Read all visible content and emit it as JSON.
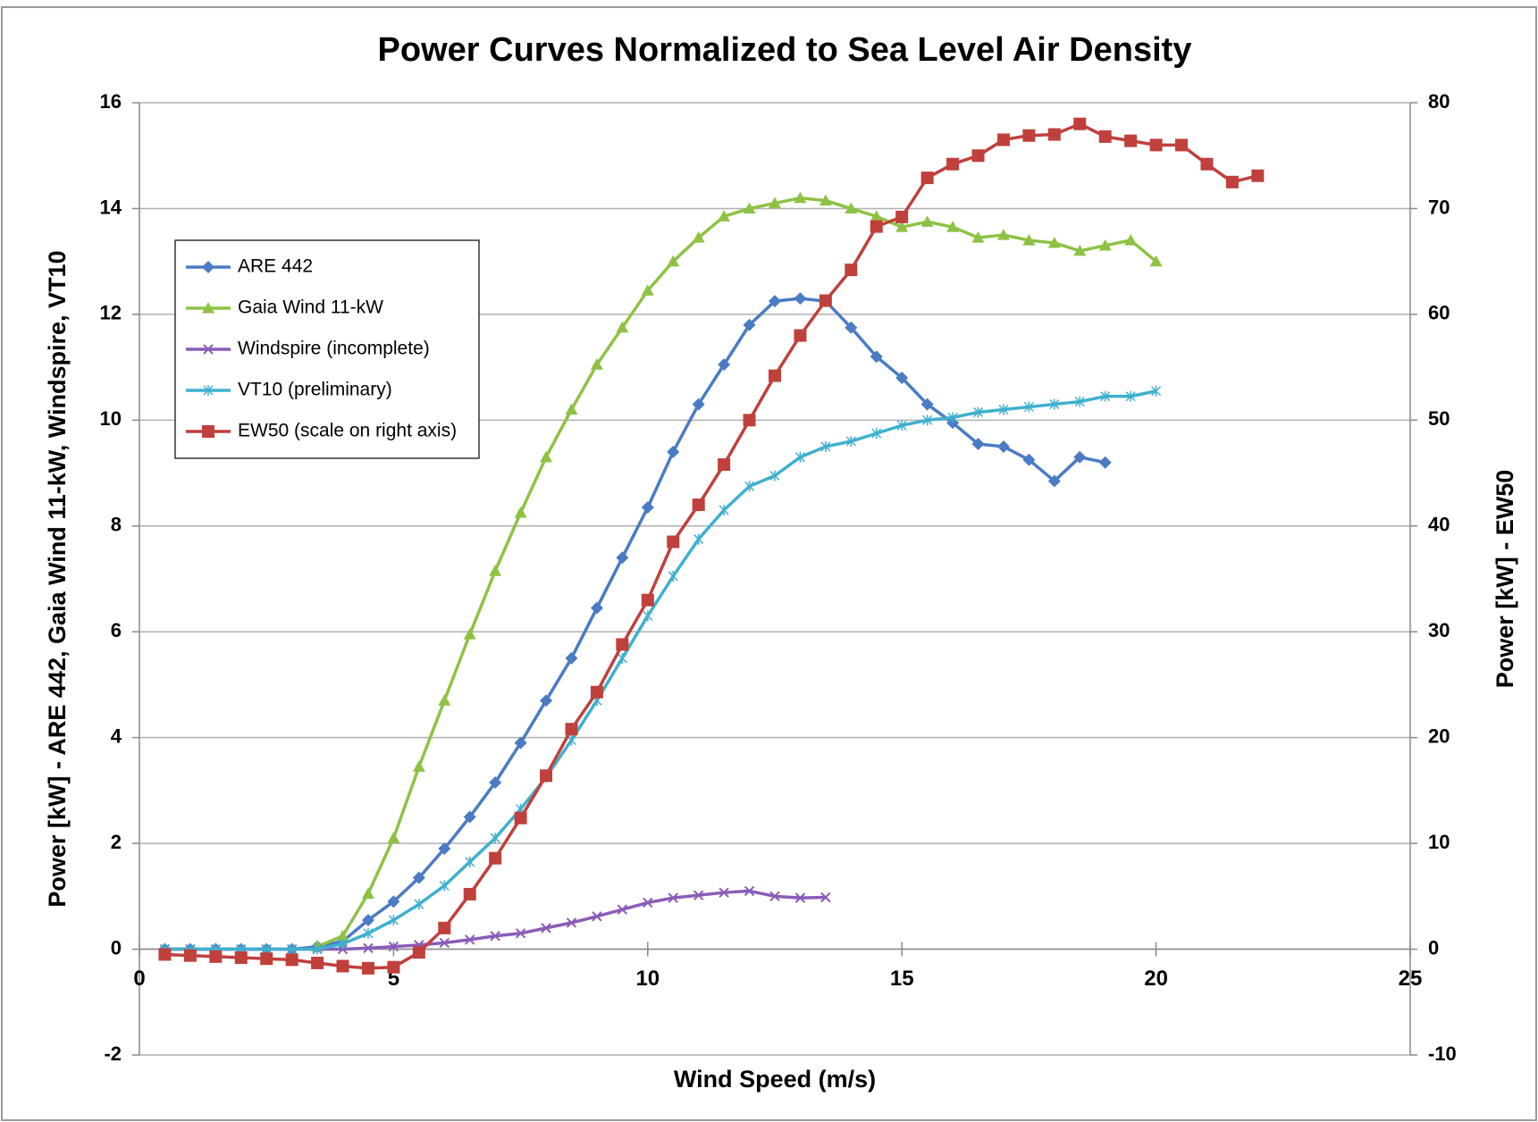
{
  "chart_data": {
    "type": "line",
    "title": "Power Curves Normalized to Sea Level Air Density",
    "xlabel": "Wind Speed (m/s)",
    "ylabel": "Power [kW] - ARE 442, Gaia Wind 11-kW, Windspire, VT10",
    "y2label": "Power [kW] - EW50",
    "xlim": [
      0,
      25
    ],
    "xticks": [
      0,
      5,
      10,
      15,
      20,
      25
    ],
    "ylim": [
      -2,
      16
    ],
    "yticks": [
      -2,
      0,
      2,
      4,
      6,
      8,
      10,
      12,
      14,
      16
    ],
    "y2lim": [
      -10,
      80
    ],
    "y2ticks": [
      -10,
      0,
      10,
      20,
      30,
      40,
      50,
      60,
      70,
      80
    ],
    "grid": true,
    "legend": "upper left",
    "y2color": "#c00000",
    "series": [
      {
        "name": "ARE 442",
        "color": "#4a7bc4",
        "marker": "diamond",
        "x": [
          0.5,
          1,
          1.5,
          2,
          2.5,
          3,
          3.5,
          4,
          4.5,
          5,
          5.5,
          6,
          6.5,
          7,
          7.5,
          8,
          8.5,
          9,
          9.5,
          10,
          10.5,
          11,
          11.5,
          12,
          12.5,
          13,
          13.5,
          14,
          14.5,
          15,
          15.5,
          16,
          16.5,
          17,
          17.5,
          18,
          18.5,
          19
        ],
        "values": [
          0,
          0,
          0,
          0,
          0,
          0,
          0.05,
          0.15,
          0.55,
          0.9,
          1.35,
          1.9,
          2.5,
          3.15,
          3.9,
          4.7,
          5.5,
          6.45,
          7.4,
          8.35,
          9.4,
          10.3,
          11.05,
          11.8,
          12.25,
          12.3,
          12.25,
          11.75,
          11.2,
          10.8,
          10.3,
          9.95,
          9.55,
          9.5,
          9.25,
          8.85,
          9.3,
          9.2
        ]
      },
      {
        "name": "Gaia Wind 11-kW",
        "color": "#8ec244",
        "marker": "triangle",
        "x": [
          3.5,
          4,
          4.5,
          5,
          5.5,
          6,
          6.5,
          7,
          7.5,
          8,
          8.5,
          9,
          9.5,
          10,
          10.5,
          11,
          11.5,
          12,
          12.5,
          13,
          13.5,
          14,
          14.5,
          15,
          15.5,
          16,
          16.5,
          17,
          17.5,
          18,
          18.5,
          19,
          19.5,
          20
        ],
        "values": [
          0.05,
          0.25,
          1.05,
          2.1,
          3.45,
          4.7,
          5.95,
          7.15,
          8.25,
          9.3,
          10.2,
          11.05,
          11.75,
          12.45,
          13.0,
          13.45,
          13.85,
          14.0,
          14.1,
          14.2,
          14.15,
          14.0,
          13.85,
          13.65,
          13.75,
          13.65,
          13.45,
          13.5,
          13.4,
          13.35,
          13.2,
          13.3,
          13.4,
          13.0
        ]
      },
      {
        "name": "Windspire (incomplete)",
        "color": "#8a5cb8",
        "marker": "x",
        "x": [
          0.5,
          1,
          1.5,
          2,
          2.5,
          3,
          3.5,
          4,
          4.5,
          5,
          5.5,
          6,
          6.5,
          7,
          7.5,
          8,
          8.5,
          9,
          9.5,
          10,
          10.5,
          11,
          11.5,
          12,
          12.5,
          13,
          13.5
        ],
        "values": [
          0,
          0,
          0,
          0,
          0,
          0,
          0,
          0,
          0.02,
          0.05,
          0.08,
          0.12,
          0.18,
          0.25,
          0.3,
          0.4,
          0.5,
          0.62,
          0.75,
          0.88,
          0.97,
          1.02,
          1.07,
          1.1,
          1.0,
          0.97,
          0.98
        ]
      },
      {
        "name": "VT10 (preliminary)",
        "color": "#3fb0cf",
        "marker": "asterisk",
        "x": [
          0.5,
          1,
          1.5,
          2,
          2.5,
          3,
          3.5,
          4,
          4.5,
          5,
          5.5,
          6,
          6.5,
          7,
          7.5,
          8,
          8.5,
          9,
          9.5,
          10,
          10.5,
          11,
          11.5,
          12,
          12.5,
          13,
          13.5,
          14,
          14.5,
          15,
          15.5,
          16,
          16.5,
          17,
          17.5,
          18,
          18.5,
          19,
          19.5,
          20
        ],
        "values": [
          0,
          0,
          0,
          0,
          0,
          0,
          0,
          0.1,
          0.3,
          0.55,
          0.85,
          1.2,
          1.65,
          2.1,
          2.65,
          3.25,
          3.95,
          4.7,
          5.5,
          6.3,
          7.05,
          7.75,
          8.3,
          8.75,
          8.95,
          9.3,
          9.5,
          9.6,
          9.75,
          9.9,
          10.0,
          10.05,
          10.15,
          10.2,
          10.25,
          10.3,
          10.35,
          10.45,
          10.45,
          10.55
        ]
      },
      {
        "name": "EW50 (scale on right axis)",
        "color": "#c0403c",
        "marker": "square",
        "axis": "y2",
        "x": [
          0.5,
          1,
          1.5,
          2,
          2.5,
          3,
          3.5,
          4,
          4.5,
          5,
          5.5,
          6,
          6.5,
          7,
          7.5,
          8,
          8.5,
          9,
          9.5,
          10,
          10.5,
          11,
          11.5,
          12,
          12.5,
          13,
          13.5,
          14,
          14.5,
          15,
          15.5,
          16,
          16.5,
          17,
          17.5,
          18,
          18.5,
          19,
          19.5,
          20,
          20.5,
          21,
          21.5,
          22
        ],
        "values": [
          -0.5,
          -0.6,
          -0.7,
          -0.8,
          -0.9,
          -1.0,
          -1.3,
          -1.6,
          -1.8,
          -1.7,
          -0.3,
          2,
          5.2,
          8.6,
          12.4,
          16.4,
          20.8,
          24.3,
          28.8,
          33.0,
          38.5,
          42.0,
          45.8,
          50,
          54.2,
          58,
          61.3,
          64.2,
          68.3,
          69.2,
          72.9,
          74.2,
          75,
          76.5,
          76.9,
          77,
          78,
          76.8,
          76.4,
          76,
          76,
          74.2,
          72.5,
          73.1
        ]
      }
    ]
  }
}
